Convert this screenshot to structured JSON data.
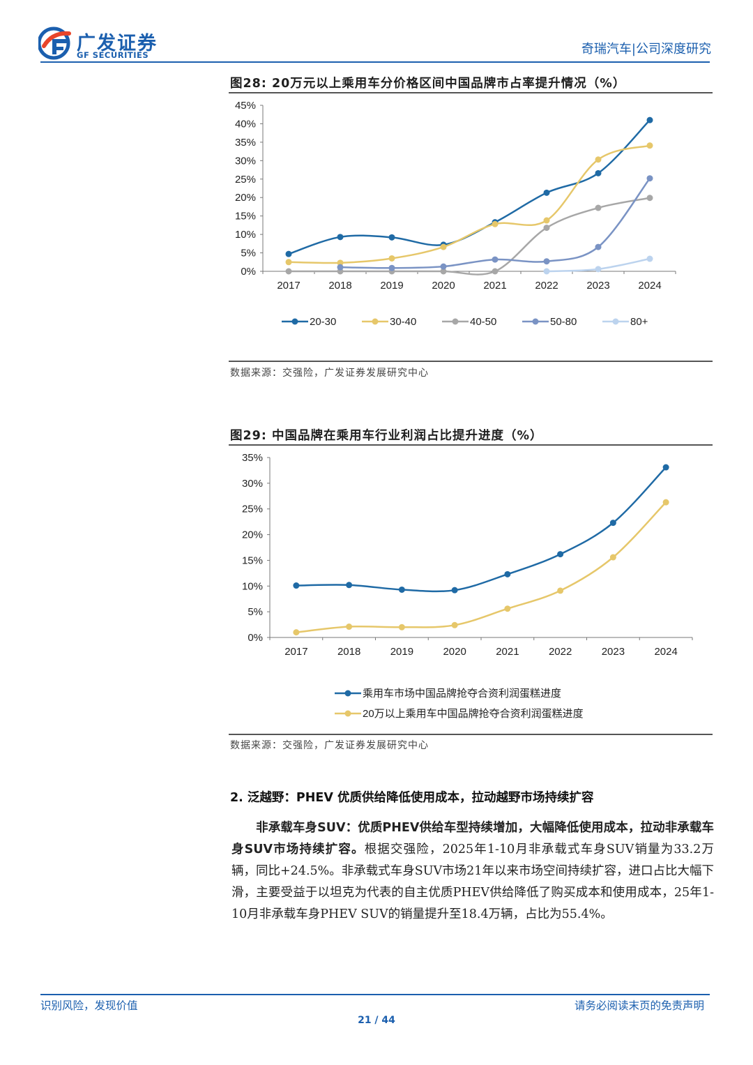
{
  "header": {
    "logo_cn": "广发证券",
    "logo_en": "GF SECURITIES",
    "report_tag": "奇瑞汽车|公司深度研究",
    "colors": {
      "brand": "#1b5fae",
      "accent": "#e8452a"
    }
  },
  "figure28": {
    "title": "图28:  20万元以上乘用车分价格区间中国品牌市占率提升情况（%）",
    "source": "数据来源：交强险，广发证券发展研究中心"
  },
  "figure29": {
    "title": "图29:  中国品牌在乘用车行业利润占比提升进度（%）",
    "source": "数据来源：交强险，广发证券发展研究中心"
  },
  "chart_data": [
    {
      "type": "line",
      "title": "20万元以上乘用车分价格区间中国品牌市占率提升情况（%）",
      "categories": [
        "2017",
        "2018",
        "2019",
        "2020",
        "2021",
        "2022",
        "2023",
        "2024"
      ],
      "y_ticks": [
        "0%",
        "5%",
        "10%",
        "15%",
        "20%",
        "25%",
        "30%",
        "35%",
        "40%",
        "45%"
      ],
      "ylim": [
        0,
        45
      ],
      "legend_position": "bottom",
      "series": [
        {
          "name": "20-30",
          "color": "#1f6aa5",
          "values": [
            4.7,
            9.3,
            9.2,
            7.2,
            13.3,
            21.3,
            26.6,
            41.0
          ]
        },
        {
          "name": "30-40",
          "color": "#e6c76a",
          "values": [
            2.5,
            2.3,
            3.5,
            6.6,
            12.8,
            13.8,
            30.3,
            34.1
          ]
        },
        {
          "name": "40-50",
          "color": "#a7a7a7",
          "values": [
            0.0,
            0.0,
            0.0,
            0.0,
            0.0,
            11.8,
            17.2,
            19.9
          ]
        },
        {
          "name": "50-80",
          "color": "#7a93c4",
          "values": [
            null,
            1.1,
            0.9,
            1.3,
            3.2,
            2.7,
            6.6,
            25.2
          ]
        },
        {
          "name": "80+",
          "color": "#bcd3ee",
          "values": [
            null,
            null,
            null,
            null,
            null,
            0.0,
            0.6,
            3.4
          ]
        }
      ]
    },
    {
      "type": "line",
      "title": "中国品牌在乘用车行业利润占比提升进度（%）",
      "categories": [
        "2017",
        "2018",
        "2019",
        "2020",
        "2021",
        "2022",
        "2023",
        "2024"
      ],
      "y_ticks": [
        "0%",
        "5%",
        "10%",
        "15%",
        "20%",
        "25%",
        "30%",
        "35%"
      ],
      "ylim": [
        0,
        35
      ],
      "legend_position": "bottom",
      "series": [
        {
          "name": "乘用车市场中国品牌抢夺合资利润蛋糕进度",
          "color": "#1f6aa5",
          "values": [
            10.1,
            10.2,
            9.3,
            9.2,
            12.3,
            16.2,
            22.3,
            33.1
          ]
        },
        {
          "name": "20万以上乘用车中国品牌抢夺合资利润蛋糕进度",
          "color": "#e6c76a",
          "values": [
            1.0,
            2.1,
            2.0,
            2.4,
            5.6,
            9.1,
            15.6,
            26.3
          ]
        }
      ]
    }
  ],
  "section": {
    "heading": "2. 泛越野：PHEV 优质供给降低使用成本，拉动越野市场持续扩容",
    "lead_bold": "非承载车身SUV：优质PHEV供给车型持续增加，大幅降低使用成本，拉动非承载车身SUV市场持续扩容。",
    "body": "根据交强险，2025年1-10月非承载式车身SUV销量为33.2万辆，同比+24.5%。非承载式车身SUV市场21年以来市场空间持续扩容，进口占比大幅下滑，主要受益于以坦克为代表的自主优质PHEV供给降低了购买成本和使用成本，25年1-10月非承载车身PHEV SUV的销量提升至18.4万辆，占比为55.4%。"
  },
  "footer": {
    "left": "识别风险，发现价值",
    "right": "请务必阅读末页的免责声明",
    "page": "21 / 44"
  }
}
